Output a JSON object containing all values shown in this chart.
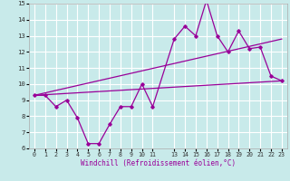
{
  "xlabel": "Windchill (Refroidissement éolien,°C)",
  "bg_color": "#c8eaea",
  "line_color": "#990099",
  "grid_color": "#ffffff",
  "xlim": [
    -0.5,
    23.5
  ],
  "ylim": [
    6,
    15
  ],
  "yticks": [
    6,
    7,
    8,
    9,
    10,
    11,
    12,
    13,
    14,
    15
  ],
  "xticks": [
    0,
    1,
    2,
    3,
    4,
    5,
    6,
    7,
    8,
    9,
    10,
    11,
    13,
    14,
    15,
    16,
    17,
    18,
    19,
    20,
    21,
    22,
    23
  ],
  "xtick_labels": [
    "0",
    "1",
    "2",
    "3",
    "4",
    "5",
    "6",
    "7",
    "8",
    "9",
    "10",
    "11",
    "13",
    "14",
    "15",
    "16",
    "17",
    "18",
    "19",
    "20",
    "21",
    "22",
    "23"
  ],
  "line1_x": [
    0,
    1,
    2,
    3,
    4,
    5,
    6,
    7,
    8,
    9,
    10,
    11,
    13,
    14,
    15,
    16,
    17,
    18,
    19,
    20,
    21,
    22,
    23
  ],
  "line1_y": [
    9.3,
    9.3,
    8.6,
    9.0,
    7.9,
    6.3,
    6.3,
    7.5,
    8.6,
    8.6,
    10.0,
    8.6,
    12.8,
    13.6,
    13.0,
    15.2,
    13.0,
    12.0,
    13.3,
    12.2,
    12.3,
    10.5,
    10.2
  ],
  "line2_x": [
    0,
    23
  ],
  "line2_y": [
    9.3,
    12.8
  ],
  "line3_x": [
    0,
    23
  ],
  "line3_y": [
    9.3,
    10.2
  ]
}
